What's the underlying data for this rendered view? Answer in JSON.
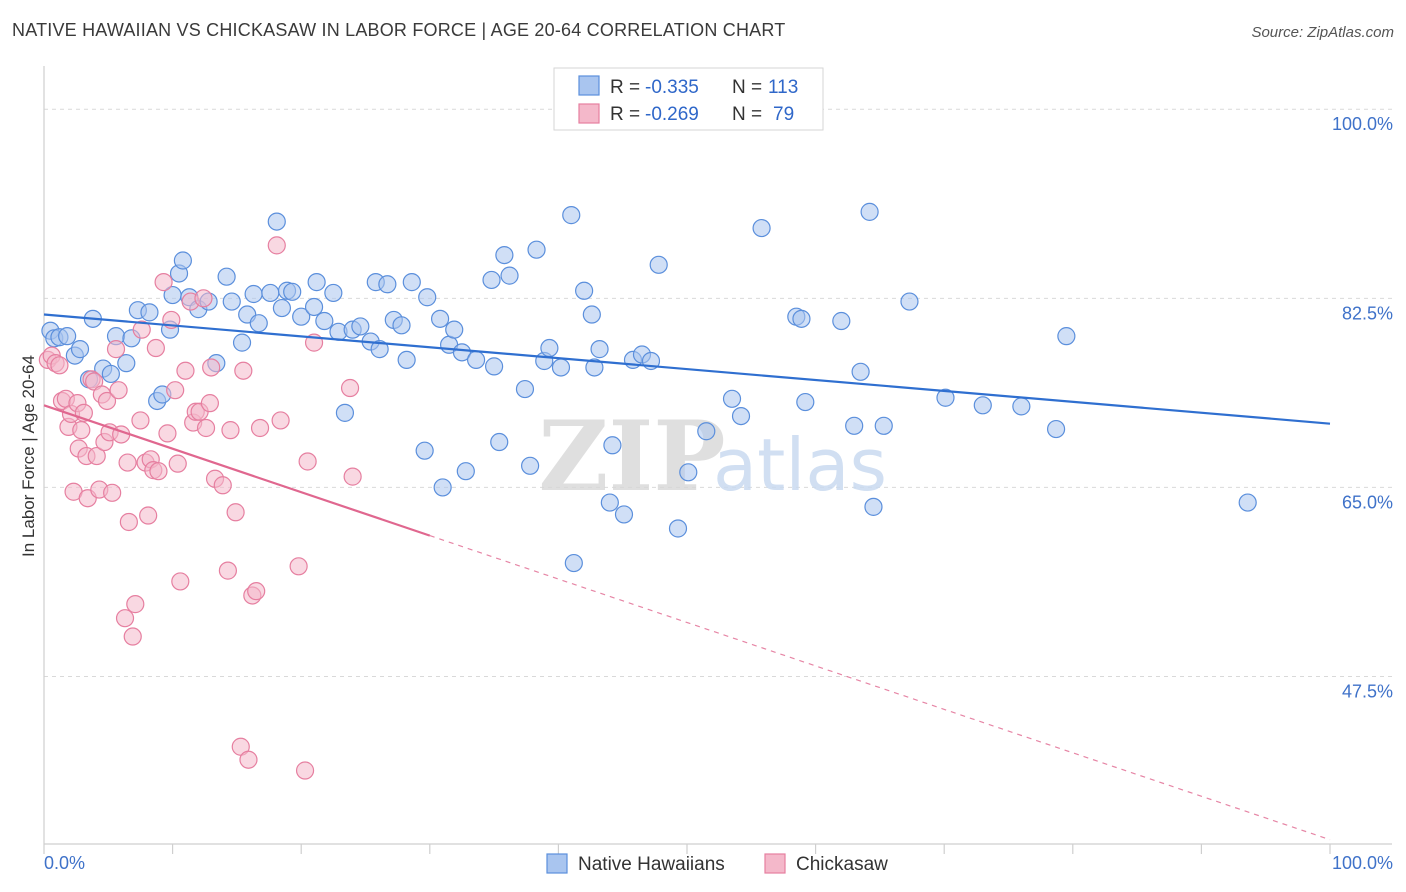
{
  "title": "NATIVE HAWAIIAN VS CHICKASAW IN LABOR FORCE | AGE 20-64 CORRELATION CHART",
  "source": "Source: ZipAtlas.com",
  "watermark": {
    "zip": "ZIP",
    "atlas": "atlas"
  },
  "colors": {
    "blue_fill": "#a9c5ef",
    "blue_stroke": "#5b8fdc",
    "blue_line": "#2f6fd0",
    "pink_fill": "#f4b8ca",
    "pink_stroke": "#e67fa0",
    "pink_line": "#e0678f",
    "grid": "#d9d9d9",
    "tick_text": "#3f72c9"
  },
  "legend": {
    "rows": [
      {
        "r_label": "R =",
        "r_value": "-0.335",
        "n_label": "N =",
        "n_value": "113",
        "series": "blue"
      },
      {
        "r_label": "R =",
        "r_value": "-0.269",
        "n_label": "N =",
        "n_value": "79",
        "series": "pink"
      }
    ]
  },
  "bottom_legend": [
    "Native Hawaiians",
    "Chickasaw"
  ],
  "chart_data": {
    "type": "scatter",
    "title": "NATIVE HAWAIIAN VS CHICKASAW IN LABOR FORCE | AGE 20-64 CORRELATION CHART",
    "xlabel": "",
    "ylabel": "In Labor Force | Age 20-64",
    "xlim": [
      0,
      100
    ],
    "ylim": [
      32,
      104
    ],
    "x_tick_labels": [
      "0.0%",
      "100.0%"
    ],
    "y_ticks": [
      47.5,
      65.0,
      82.5,
      100.0
    ],
    "y_tick_labels": [
      "47.5%",
      "65.0%",
      "82.5%",
      "100.0%"
    ],
    "grid": true,
    "series": [
      {
        "name": "Native Hawaiians",
        "color": "blue",
        "r": -0.335,
        "n": 113,
        "trend": {
          "x0": 0,
          "y0": 81.0,
          "x1": 100,
          "y1": 70.9,
          "dashed_from": null
        },
        "points": [
          [
            0.5,
            79.5
          ],
          [
            0.8,
            78.8
          ],
          [
            1.2,
            78.9
          ],
          [
            1.8,
            79.0
          ],
          [
            2.4,
            77.2
          ],
          [
            2.8,
            77.8
          ],
          [
            3.5,
            75.0
          ],
          [
            3.8,
            80.6
          ],
          [
            4.6,
            76.0
          ],
          [
            5.2,
            75.5
          ],
          [
            5.6,
            79.0
          ],
          [
            6.4,
            76.5
          ],
          [
            6.8,
            78.8
          ],
          [
            7.3,
            81.4
          ],
          [
            8.2,
            81.2
          ],
          [
            8.8,
            73.0
          ],
          [
            9.2,
            73.6
          ],
          [
            9.8,
            79.6
          ],
          [
            10.0,
            82.8
          ],
          [
            10.5,
            84.8
          ],
          [
            10.8,
            86.0
          ],
          [
            11.3,
            82.6
          ],
          [
            12.0,
            81.5
          ],
          [
            12.8,
            82.2
          ],
          [
            13.4,
            76.5
          ],
          [
            14.2,
            84.5
          ],
          [
            14.6,
            82.2
          ],
          [
            15.4,
            78.4
          ],
          [
            15.8,
            81.0
          ],
          [
            16.3,
            82.9
          ],
          [
            16.7,
            80.2
          ],
          [
            17.6,
            83.0
          ],
          [
            18.1,
            89.6
          ],
          [
            18.5,
            81.6
          ],
          [
            18.9,
            83.2
          ],
          [
            19.3,
            83.1
          ],
          [
            20.0,
            80.8
          ],
          [
            21.0,
            81.7
          ],
          [
            21.2,
            84.0
          ],
          [
            21.8,
            80.4
          ],
          [
            22.5,
            83.0
          ],
          [
            22.9,
            79.4
          ],
          [
            23.4,
            71.9
          ],
          [
            24.0,
            79.6
          ],
          [
            24.6,
            79.9
          ],
          [
            25.4,
            78.5
          ],
          [
            25.8,
            84.0
          ],
          [
            26.1,
            77.8
          ],
          [
            26.7,
            83.8
          ],
          [
            27.2,
            80.5
          ],
          [
            27.8,
            80.0
          ],
          [
            28.2,
            76.8
          ],
          [
            28.6,
            84.0
          ],
          [
            29.6,
            68.4
          ],
          [
            29.8,
            82.6
          ],
          [
            30.8,
            80.6
          ],
          [
            31.0,
            65.0
          ],
          [
            31.5,
            78.2
          ],
          [
            31.9,
            79.6
          ],
          [
            32.5,
            77.5
          ],
          [
            32.8,
            66.5
          ],
          [
            33.6,
            76.8
          ],
          [
            34.8,
            84.2
          ],
          [
            35.0,
            76.2
          ],
          [
            35.4,
            69.2
          ],
          [
            35.8,
            86.5
          ],
          [
            36.2,
            84.6
          ],
          [
            37.4,
            74.1
          ],
          [
            37.8,
            67.0
          ],
          [
            38.3,
            87.0
          ],
          [
            38.9,
            76.7
          ],
          [
            39.3,
            77.9
          ],
          [
            40.2,
            76.1
          ],
          [
            41.0,
            90.2
          ],
          [
            41.2,
            58.0
          ],
          [
            42.0,
            83.2
          ],
          [
            42.6,
            81.0
          ],
          [
            42.8,
            76.1
          ],
          [
            43.2,
            77.8
          ],
          [
            44.0,
            63.6
          ],
          [
            44.2,
            68.9
          ],
          [
            45.1,
            62.5
          ],
          [
            45.8,
            76.8
          ],
          [
            46.5,
            77.3
          ],
          [
            47.2,
            76.7
          ],
          [
            47.8,
            85.6
          ],
          [
            49.3,
            61.2
          ],
          [
            50.1,
            66.4
          ],
          [
            51.5,
            70.2
          ],
          [
            53.5,
            73.2
          ],
          [
            54.2,
            71.6
          ],
          [
            55.8,
            89.0
          ],
          [
            58.5,
            80.8
          ],
          [
            58.9,
            80.6
          ],
          [
            59.2,
            72.9
          ],
          [
            62.0,
            80.4
          ],
          [
            63.0,
            70.7
          ],
          [
            63.5,
            75.7
          ],
          [
            64.2,
            90.5
          ],
          [
            64.5,
            63.2
          ],
          [
            65.3,
            70.7
          ],
          [
            67.3,
            82.2
          ],
          [
            70.1,
            73.3
          ],
          [
            73.0,
            72.6
          ],
          [
            76.0,
            72.5
          ],
          [
            78.7,
            70.4
          ],
          [
            79.5,
            79.0
          ],
          [
            93.6,
            63.6
          ]
        ]
      },
      {
        "name": "Chickasaw",
        "color": "pink",
        "r": -0.269,
        "n": 79,
        "trend": {
          "x0": 0,
          "y0": 72.6,
          "x1": 100,
          "y1": 32.4,
          "dashed_from": 30
        },
        "points": [
          [
            0.3,
            76.8
          ],
          [
            0.6,
            77.2
          ],
          [
            0.9,
            76.5
          ],
          [
            1.2,
            76.3
          ],
          [
            1.4,
            73.0
          ],
          [
            1.7,
            73.2
          ],
          [
            1.9,
            70.6
          ],
          [
            2.1,
            71.8
          ],
          [
            2.3,
            64.6
          ],
          [
            2.6,
            72.8
          ],
          [
            2.7,
            68.6
          ],
          [
            2.9,
            70.3
          ],
          [
            3.1,
            71.9
          ],
          [
            3.3,
            67.9
          ],
          [
            3.4,
            64.0
          ],
          [
            3.7,
            75.0
          ],
          [
            3.9,
            74.8
          ],
          [
            4.1,
            67.9
          ],
          [
            4.3,
            64.8
          ],
          [
            4.5,
            73.6
          ],
          [
            4.7,
            69.2
          ],
          [
            4.9,
            73.0
          ],
          [
            5.1,
            70.1
          ],
          [
            5.3,
            64.5
          ],
          [
            5.6,
            77.8
          ],
          [
            5.8,
            74.0
          ],
          [
            6.0,
            69.9
          ],
          [
            6.3,
            52.9
          ],
          [
            6.5,
            67.3
          ],
          [
            6.6,
            61.8
          ],
          [
            6.9,
            51.2
          ],
          [
            7.1,
            54.2
          ],
          [
            7.5,
            71.2
          ],
          [
            7.6,
            79.6
          ],
          [
            7.9,
            67.3
          ],
          [
            8.1,
            62.4
          ],
          [
            8.3,
            67.6
          ],
          [
            8.5,
            66.6
          ],
          [
            8.7,
            77.9
          ],
          [
            8.9,
            66.5
          ],
          [
            9.3,
            84.0
          ],
          [
            9.6,
            70.0
          ],
          [
            9.9,
            80.5
          ],
          [
            10.2,
            74.0
          ],
          [
            10.4,
            67.2
          ],
          [
            10.6,
            56.3
          ],
          [
            11.0,
            75.8
          ],
          [
            11.4,
            82.2
          ],
          [
            11.6,
            71.0
          ],
          [
            11.8,
            72.0
          ],
          [
            12.1,
            72.0
          ],
          [
            12.4,
            82.5
          ],
          [
            12.6,
            70.5
          ],
          [
            12.9,
            72.8
          ],
          [
            13.0,
            76.1
          ],
          [
            13.3,
            65.8
          ],
          [
            13.9,
            65.2
          ],
          [
            14.3,
            57.3
          ],
          [
            14.5,
            70.3
          ],
          [
            14.9,
            62.7
          ],
          [
            15.3,
            41.0
          ],
          [
            15.5,
            75.8
          ],
          [
            15.9,
            39.8
          ],
          [
            16.2,
            55.0
          ],
          [
            16.5,
            55.4
          ],
          [
            16.8,
            70.5
          ],
          [
            18.1,
            87.4
          ],
          [
            18.4,
            71.2
          ],
          [
            19.8,
            57.7
          ],
          [
            20.3,
            38.8
          ],
          [
            20.5,
            67.4
          ],
          [
            21.0,
            78.4
          ],
          [
            23.8,
            74.2
          ],
          [
            24.0,
            66.0
          ]
        ]
      }
    ]
  }
}
